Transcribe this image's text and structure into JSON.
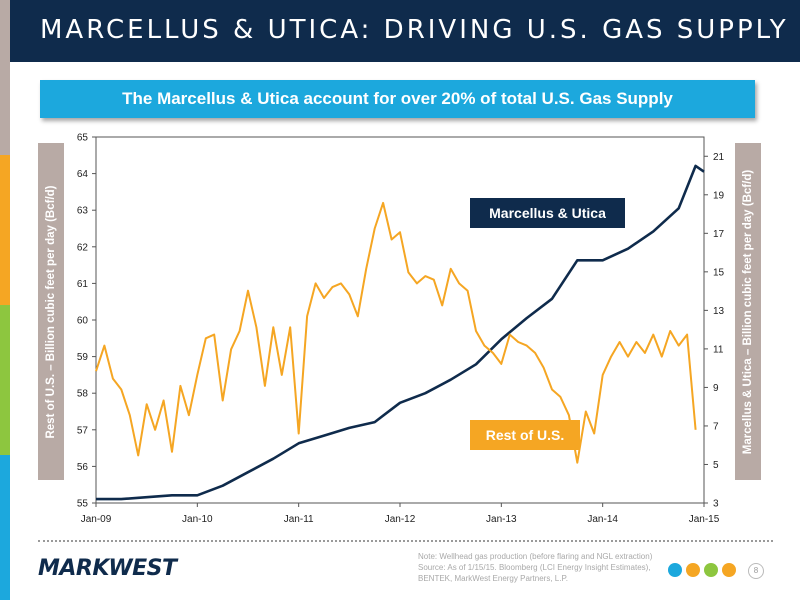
{
  "header": {
    "title": "MARCELLUS & UTICA: DRIVING U.S. GAS SUPPLY"
  },
  "subtitle": "The Marcellus & Utica account for over 20% of total U.S. Gas Supply",
  "colors": {
    "header_bg": "#0f2b4c",
    "banner": "#1ca8dd",
    "marcellus": "#0f2b4c",
    "rest": "#f5a623",
    "axis_box": "#b8aaa5",
    "strip": [
      "#b8aaa5",
      "#f5a623",
      "#8dc63f",
      "#1ca8dd"
    ]
  },
  "chart_data": {
    "type": "line",
    "xlabel": "",
    "x_ticks": [
      "Jan-09",
      "Jan-10",
      "Jan-11",
      "Jan-12",
      "Jan-13",
      "Jan-14",
      "Jan-15"
    ],
    "x_range": [
      "2009-01",
      "2015-01"
    ],
    "left_axis": {
      "label": "Rest of U.S. – Billion cubic feet per day (Bcf/d)",
      "range": [
        55,
        65
      ],
      "ticks": [
        55,
        56,
        57,
        58,
        59,
        60,
        61,
        62,
        63,
        64,
        65
      ]
    },
    "right_axis": {
      "label": "Marcellus & Utica – Billion cubic feet per day (Bcf/d)",
      "range": [
        3,
        22
      ],
      "ticks": [
        3,
        5,
        7,
        9,
        11,
        13,
        15,
        17,
        19,
        21
      ]
    },
    "grid": false,
    "series": [
      {
        "name": "Marcellus & Utica",
        "axis": "right",
        "color": "#0f2b4c",
        "points": [
          [
            "2009-01",
            3.2
          ],
          [
            "2009-04",
            3.2
          ],
          [
            "2009-07",
            3.3
          ],
          [
            "2009-10",
            3.4
          ],
          [
            "2010-01",
            3.4
          ],
          [
            "2010-04",
            3.9
          ],
          [
            "2010-07",
            4.6
          ],
          [
            "2010-10",
            5.3
          ],
          [
            "2011-01",
            6.1
          ],
          [
            "2011-04",
            6.5
          ],
          [
            "2011-07",
            6.9
          ],
          [
            "2011-10",
            7.2
          ],
          [
            "2012-01",
            8.2
          ],
          [
            "2012-04",
            8.7
          ],
          [
            "2012-07",
            9.4
          ],
          [
            "2012-10",
            10.2
          ],
          [
            "2013-01",
            11.5
          ],
          [
            "2013-04",
            12.6
          ],
          [
            "2013-07",
            13.6
          ],
          [
            "2013-10",
            15.6
          ],
          [
            "2014-01",
            15.6
          ],
          [
            "2014-04",
            16.2
          ],
          [
            "2014-07",
            17.1
          ],
          [
            "2014-10",
            18.3
          ],
          [
            "2014-12",
            20.5
          ],
          [
            "2015-01",
            20.2
          ]
        ]
      },
      {
        "name": "Rest of U.S.",
        "axis": "left",
        "color": "#f5a623",
        "points": [
          [
            "2009-01",
            58.6
          ],
          [
            "2009-02",
            59.3
          ],
          [
            "2009-03",
            58.4
          ],
          [
            "2009-04",
            58.1
          ],
          [
            "2009-05",
            57.4
          ],
          [
            "2009-06",
            56.3
          ],
          [
            "2009-07",
            57.7
          ],
          [
            "2009-08",
            57.0
          ],
          [
            "2009-09",
            57.8
          ],
          [
            "2009-10",
            56.4
          ],
          [
            "2009-11",
            58.2
          ],
          [
            "2009-12",
            57.4
          ],
          [
            "2010-01",
            58.5
          ],
          [
            "2010-02",
            59.5
          ],
          [
            "2010-03",
            59.6
          ],
          [
            "2010-04",
            57.8
          ],
          [
            "2010-05",
            59.2
          ],
          [
            "2010-06",
            59.7
          ],
          [
            "2010-07",
            60.8
          ],
          [
            "2010-08",
            59.8
          ],
          [
            "2010-09",
            58.2
          ],
          [
            "2010-10",
            59.8
          ],
          [
            "2010-11",
            58.5
          ],
          [
            "2010-12",
            59.8
          ],
          [
            "2011-01",
            56.9
          ],
          [
            "2011-02",
            60.1
          ],
          [
            "2011-03",
            61.0
          ],
          [
            "2011-04",
            60.6
          ],
          [
            "2011-05",
            60.9
          ],
          [
            "2011-06",
            61.0
          ],
          [
            "2011-07",
            60.7
          ],
          [
            "2011-08",
            60.1
          ],
          [
            "2011-09",
            61.4
          ],
          [
            "2011-10",
            62.5
          ],
          [
            "2011-11",
            63.2
          ],
          [
            "2011-12",
            62.2
          ],
          [
            "2012-01",
            62.4
          ],
          [
            "2012-02",
            61.3
          ],
          [
            "2012-03",
            61.0
          ],
          [
            "2012-04",
            61.2
          ],
          [
            "2012-05",
            61.1
          ],
          [
            "2012-06",
            60.4
          ],
          [
            "2012-07",
            61.4
          ],
          [
            "2012-08",
            61.0
          ],
          [
            "2012-09",
            60.8
          ],
          [
            "2012-10",
            59.7
          ],
          [
            "2012-11",
            59.3
          ],
          [
            "2012-12",
            59.1
          ],
          [
            "2013-01",
            58.8
          ],
          [
            "2013-02",
            59.6
          ],
          [
            "2013-03",
            59.4
          ],
          [
            "2013-04",
            59.3
          ],
          [
            "2013-05",
            59.1
          ],
          [
            "2013-06",
            58.7
          ],
          [
            "2013-07",
            58.1
          ],
          [
            "2013-08",
            57.9
          ],
          [
            "2013-09",
            57.4
          ],
          [
            "2013-10",
            56.1
          ],
          [
            "2013-11",
            57.5
          ],
          [
            "2013-12",
            56.9
          ],
          [
            "2014-01",
            58.5
          ],
          [
            "2014-02",
            59.0
          ],
          [
            "2014-03",
            59.4
          ],
          [
            "2014-04",
            59.0
          ],
          [
            "2014-05",
            59.4
          ],
          [
            "2014-06",
            59.1
          ],
          [
            "2014-07",
            59.6
          ],
          [
            "2014-08",
            59.0
          ],
          [
            "2014-09",
            59.7
          ],
          [
            "2014-10",
            59.3
          ],
          [
            "2014-11",
            59.6
          ],
          [
            "2014-12",
            57.0
          ]
        ]
      }
    ],
    "annotations": [
      {
        "text": "Marcellus & Utica",
        "series": "Marcellus & Utica"
      },
      {
        "text": "Rest of U.S.",
        "series": "Rest of U.S."
      }
    ]
  },
  "footer": {
    "logo": "MARKWEST",
    "note_lines": [
      "Note: Wellhead gas production (before flaring and NGL extraction)",
      "Source: As of 1/15/15. Bloomberg (LCI Energy Insight Estimates),",
      "BENTEK, MarkWest Energy Partners, L.P."
    ],
    "page_number": "8",
    "icons": [
      "flame-icon",
      "droplet-icon",
      "leaf-icon",
      "factory-icon"
    ]
  }
}
